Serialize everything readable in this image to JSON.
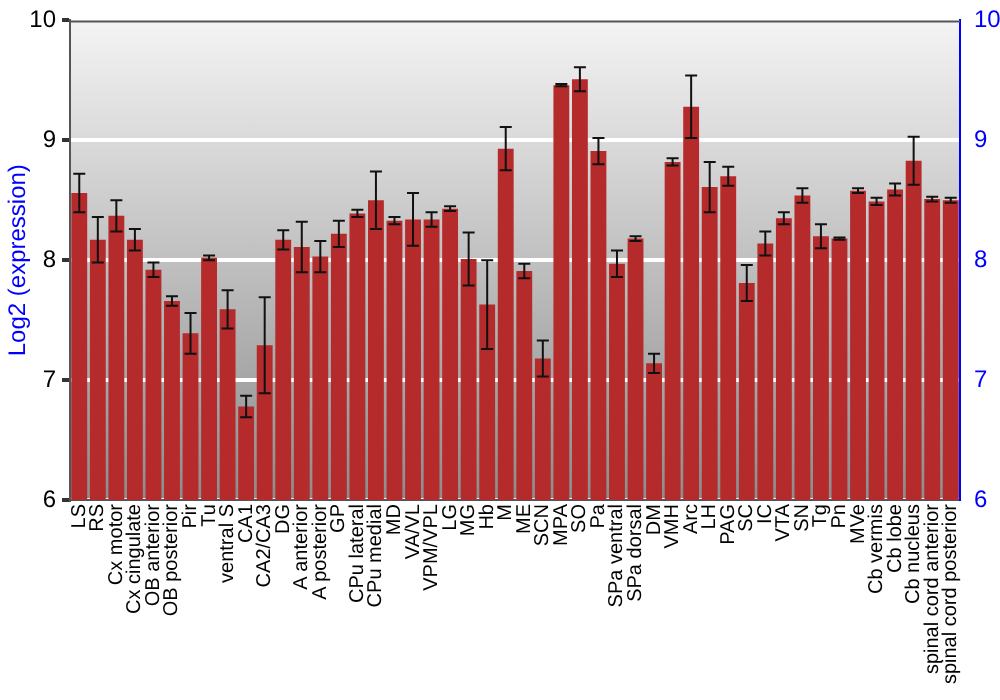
{
  "chart_data": {
    "type": "bar",
    "ylabel": "Log2 (expression)",
    "categories": [
      "LS",
      "RS",
      "Cx motor",
      "Cx cingulate",
      "OB anterior",
      "OB posterior",
      "Pir",
      "Tu",
      "ventral S",
      "CA1",
      "CA2/CA3",
      "DG",
      "A anterior",
      "A posterior",
      "GP",
      "CPu lateral",
      "CPu medial",
      "MD",
      "VA/VL",
      "VPM/VPL",
      "LG",
      "MG",
      "Hb",
      "M",
      "ME",
      "SCN",
      "MPA",
      "SO",
      "Pa",
      "SPa ventral",
      "SPa dorsal",
      "DM",
      "VMH",
      "Arc",
      "LH",
      "PAG",
      "SC",
      "IC",
      "VTA",
      "SN",
      "Tg",
      "Pn",
      "MVe",
      "Cb vermis",
      "Cb lobe",
      "Cb nucleus",
      "spinal cord anterior",
      "spinal cord posterior"
    ],
    "values": [
      8.56,
      8.17,
      8.37,
      8.17,
      7.92,
      7.66,
      7.39,
      8.02,
      7.59,
      6.78,
      7.29,
      8.17,
      8.11,
      8.03,
      8.22,
      8.39,
      8.5,
      8.33,
      8.34,
      8.34,
      8.43,
      8.01,
      7.63,
      8.93,
      7.91,
      7.18,
      9.46,
      9.51,
      8.91,
      7.97,
      8.18,
      7.14,
      8.82,
      9.28,
      8.61,
      8.7,
      7.81,
      8.14,
      8.35,
      8.54,
      8.2,
      8.18,
      8.58,
      8.49,
      8.59,
      8.83,
      8.51,
      8.5
    ],
    "errors": [
      0.16,
      0.19,
      0.13,
      0.09,
      0.06,
      0.04,
      0.17,
      0.02,
      0.16,
      0.09,
      0.4,
      0.08,
      0.21,
      0.13,
      0.11,
      0.03,
      0.24,
      0.03,
      0.22,
      0.06,
      0.02,
      0.22,
      0.37,
      0.18,
      0.06,
      0.15,
      0.01,
      0.1,
      0.11,
      0.11,
      0.02,
      0.08,
      0.03,
      0.26,
      0.21,
      0.08,
      0.15,
      0.1,
      0.05,
      0.06,
      0.1,
      0.01,
      0.02,
      0.03,
      0.05,
      0.2,
      0.02,
      0.02
    ],
    "color": "#b52a2a",
    "ylim": [
      6,
      10
    ],
    "yticks": [
      6,
      7,
      8,
      9,
      10
    ],
    "y2lim": [
      6,
      10
    ],
    "y2ticks": [
      6,
      7,
      8,
      9,
      10
    ],
    "grid": "y",
    "legend": false
  }
}
